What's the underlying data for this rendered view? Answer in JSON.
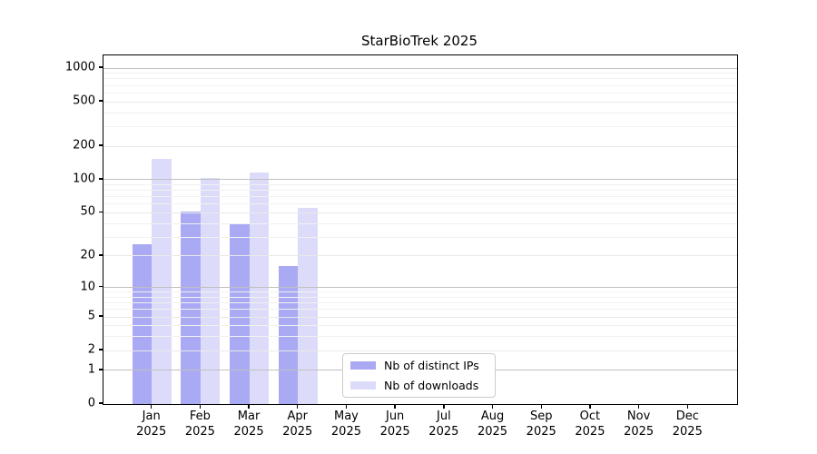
{
  "title": "StarBioTrek 2025",
  "chart_data": {
    "type": "bar",
    "title": "StarBioTrek 2025",
    "categories": [
      "Jan",
      "Feb",
      "Mar",
      "Apr",
      "May",
      "Jun",
      "Jul",
      "Aug",
      "Sep",
      "Oct",
      "Nov",
      "Dec"
    ],
    "year_label": "2025",
    "series": [
      {
        "name": "Nb of distinct IPs",
        "color": "#a9a9f4",
        "values": [
          26,
          51,
          39,
          16,
          null,
          null,
          null,
          null,
          null,
          null,
          null,
          null
        ]
      },
      {
        "name": "Nb of downloads",
        "color": "#dcdcfa",
        "values": [
          154,
          104,
          116,
          55,
          null,
          null,
          null,
          null,
          null,
          null,
          null,
          null
        ]
      }
    ],
    "y_axis": {
      "scale": "log1p",
      "ticks": [
        0,
        1,
        2,
        5,
        10,
        20,
        50,
        100,
        200,
        500,
        1000
      ],
      "major_gridline_values": [
        1,
        10,
        100,
        1000
      ],
      "minor_gridline_values": [
        3,
        4,
        6,
        7,
        8,
        9,
        30,
        40,
        60,
        70,
        80,
        90,
        300,
        400,
        600,
        700,
        800,
        900
      ],
      "top_value": 1300
    },
    "x_axis": {
      "tick_label_top": "month",
      "tick_label_bottom": "year"
    },
    "legend": {
      "position": "bottom-center",
      "entries": [
        "Nb of distinct IPs",
        "Nb of downloads"
      ]
    },
    "grid_on": true,
    "gridlines_above_bars": true
  }
}
